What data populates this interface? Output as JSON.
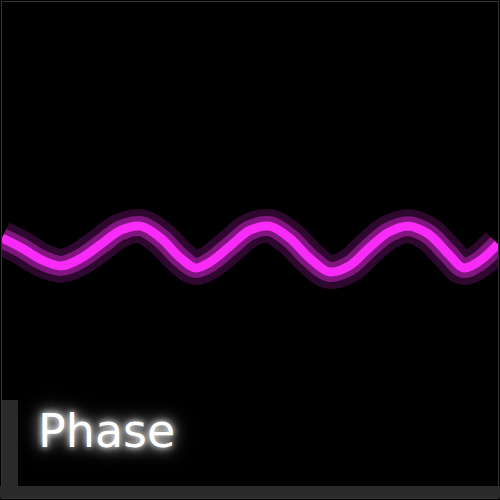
{
  "chart_data": {
    "type": "line",
    "x": [
      0,
      20,
      40,
      60,
      80,
      100,
      120,
      140,
      160,
      180,
      195,
      210,
      230,
      250,
      270,
      290,
      310,
      330,
      350,
      370,
      390,
      410,
      430,
      450,
      465,
      480,
      500
    ],
    "series": [
      {
        "color": "#ff2cff",
        "values": [
          262,
          252,
          240,
          234,
          242,
          256,
          270,
          274,
          262,
          242,
          232,
          238,
          254,
          270,
          274,
          262,
          242,
          228,
          234,
          252,
          268,
          274,
          266,
          246,
          232,
          238,
          256
        ]
      }
    ],
    "xlim": [
      0,
      500
    ],
    "ylim": [
      0,
      500
    ],
    "tick_labels": false,
    "annotations": [
      "Phase"
    ]
  }
}
